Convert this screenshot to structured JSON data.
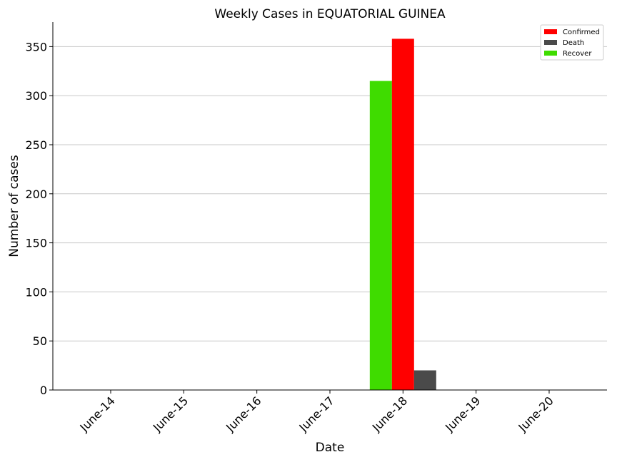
{
  "chart_data": {
    "type": "bar",
    "title": "Weekly Cases in EQUATORIAL GUINEA",
    "xlabel": "Date",
    "ylabel": "Number of cases",
    "categories": [
      "June-14",
      "June-15",
      "June-16",
      "June-17",
      "June-18",
      "June-19",
      "June-20"
    ],
    "series": [
      {
        "name": "Recover",
        "color": "#3fdc00",
        "values": [
          0,
          0,
          0,
          0,
          315,
          0,
          0
        ]
      },
      {
        "name": "Confirmed",
        "color": "#ff0000",
        "values": [
          0,
          0,
          0,
          0,
          358,
          0,
          0
        ]
      },
      {
        "name": "Death",
        "color": "#4a4a4a",
        "values": [
          0,
          0,
          0,
          0,
          20,
          0,
          0
        ]
      }
    ],
    "legend_order": [
      "Confirmed",
      "Death",
      "Recover"
    ],
    "legend_position": "top-right",
    "ylim": [
      0,
      375
    ],
    "yticks": [
      0,
      50,
      100,
      150,
      200,
      250,
      300,
      350
    ],
    "grid": "horizontal"
  }
}
